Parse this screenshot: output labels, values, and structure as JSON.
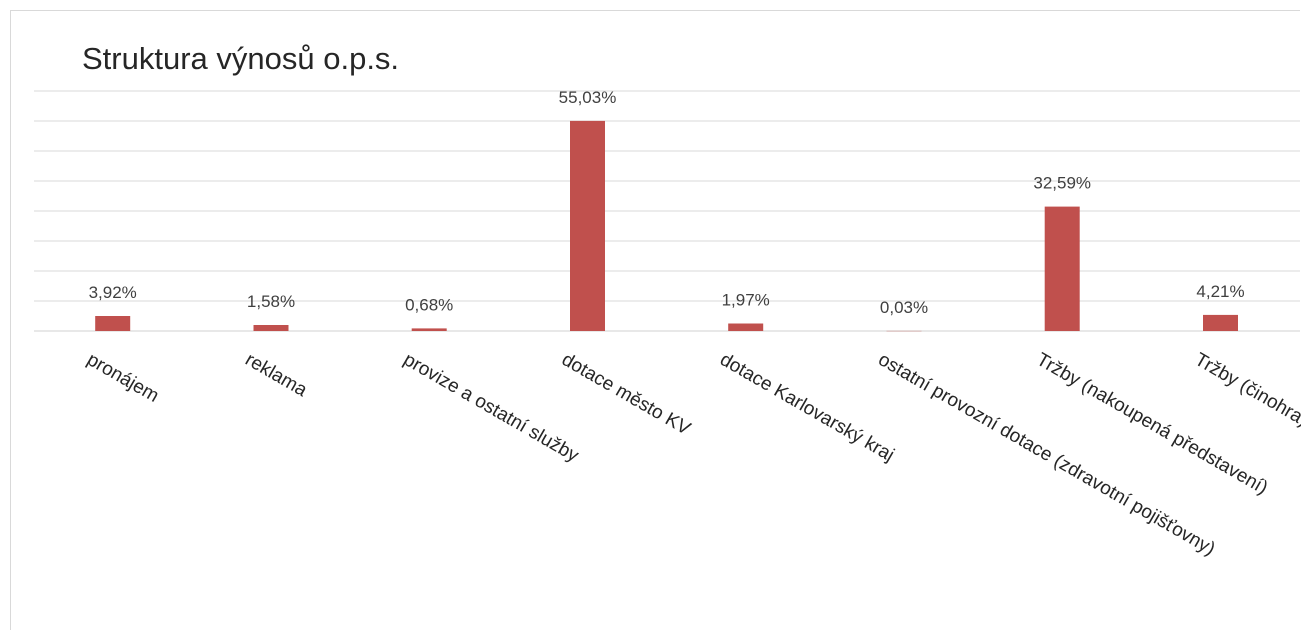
{
  "chart_data": {
    "type": "bar",
    "title": "Struktura výnosů o.p.s.",
    "xlabel": "",
    "ylabel": "",
    "ylim": [
      0,
      70
    ],
    "grid": true,
    "legend": "none",
    "color": "#c0504d",
    "categories": [
      "pronájem",
      "reklama",
      "provize a ostatní služby",
      "dotace město KV",
      "dotace Karlovarský kraj",
      "ostatní provozní dotace (zdravotní pojišťovny)",
      "Tržby (nakoupená představení)",
      "Tržby (činohra)"
    ],
    "values": [
      3.92,
      1.58,
      0.68,
      55.03,
      1.97,
      0.03,
      32.59,
      4.21
    ],
    "data_labels": [
      "3,92%",
      "1,58%",
      "0,68%",
      "55,03%",
      "1,97%",
      "0,03%",
      "32,59%",
      "4,21%"
    ]
  }
}
